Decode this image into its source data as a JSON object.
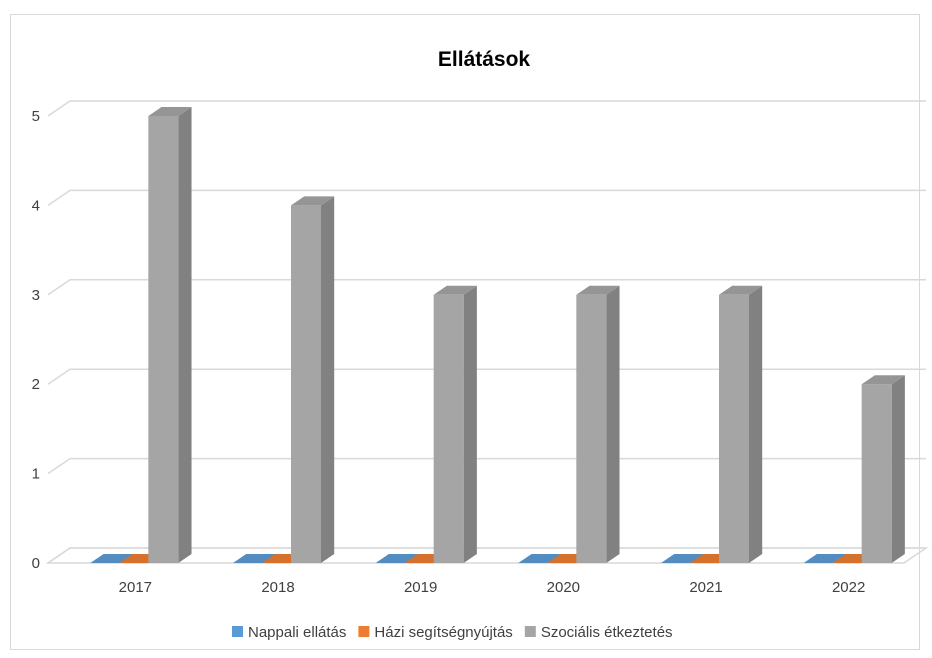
{
  "chart_data": {
    "type": "bar",
    "title": "Ellátások",
    "categories": [
      "2017",
      "2018",
      "2019",
      "2020",
      "2021",
      "2022"
    ],
    "series": [
      {
        "name": "Nappali ellátás",
        "values": [
          0,
          0,
          0,
          0,
          0,
          0
        ],
        "color": "#5b9bd5"
      },
      {
        "name": "Házi segítségnyújtás",
        "values": [
          0,
          0,
          0,
          0,
          0,
          0
        ],
        "color": "#ed7d31"
      },
      {
        "name": "Szociális étkeztetés",
        "values": [
          5,
          4,
          3,
          3,
          3,
          2
        ],
        "color": "#a5a5a5"
      }
    ],
    "yticks": [
      "0",
      "1",
      "2",
      "3",
      "4",
      "5"
    ],
    "ylim": [
      0,
      5
    ],
    "grid": true,
    "legend": "bottom",
    "three_d": true
  }
}
